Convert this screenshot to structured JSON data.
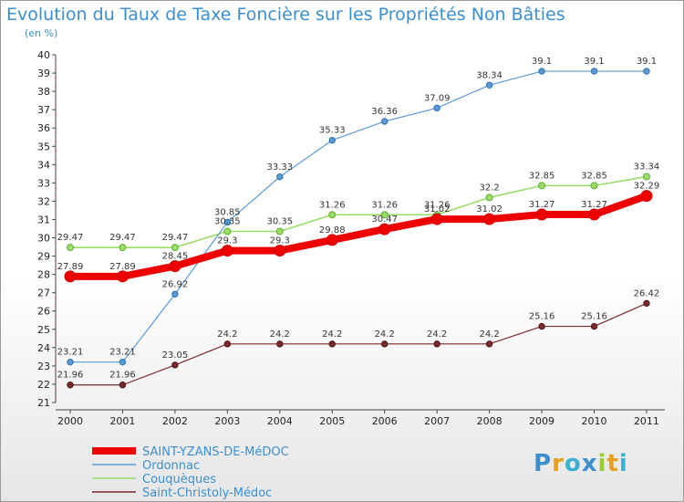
{
  "chart_data": {
    "type": "line",
    "title": "Evolution du Taux de Taxe Foncière sur les Propriétés Non Bâties",
    "subtitle": "(en %)",
    "xlabel": "",
    "ylabel": "",
    "ylim": [
      21,
      40
    ],
    "grid": false,
    "categories": [
      "2000",
      "2001",
      "2002",
      "2003",
      "2004",
      "2005",
      "2006",
      "2007",
      "2008",
      "2009",
      "2010",
      "2011"
    ],
    "series": [
      {
        "name": "SAINT-YZANS-DE-MéDOC",
        "color": "#ee0000",
        "values": [
          27.89,
          27.89,
          28.45,
          29.3,
          29.3,
          29.88,
          30.47,
          31.02,
          31.02,
          31.27,
          31.27,
          32.29
        ]
      },
      {
        "name": "Ordonnac",
        "color": "#5b9bd5",
        "values": [
          23.21,
          23.21,
          26.92,
          30.85,
          33.33,
          35.33,
          36.36,
          37.09,
          38.34,
          39.1,
          39.1,
          39.1
        ]
      },
      {
        "name": "Couquèques",
        "color": "#99dd66",
        "values": [
          29.47,
          29.47,
          29.47,
          30.35,
          30.35,
          31.26,
          31.26,
          31.26,
          32.2,
          32.85,
          32.85,
          33.34
        ]
      },
      {
        "name": "Saint-Christoly-Médoc",
        "color": "#7a2a2a",
        "values": [
          21.96,
          21.96,
          23.05,
          24.2,
          24.2,
          24.2,
          24.2,
          24.2,
          24.2,
          25.16,
          25.16,
          26.42
        ]
      }
    ],
    "legend_position": "bottom-left"
  },
  "logo": {
    "letters": [
      "P",
      "r",
      "o",
      "x",
      "i",
      "t",
      "i"
    ],
    "colors": [
      "#3b8fd0",
      "#e8a020",
      "#3bb0d0",
      "#3b8fd0",
      "#9acd32",
      "#e8a020",
      "#3bb0d0"
    ]
  }
}
